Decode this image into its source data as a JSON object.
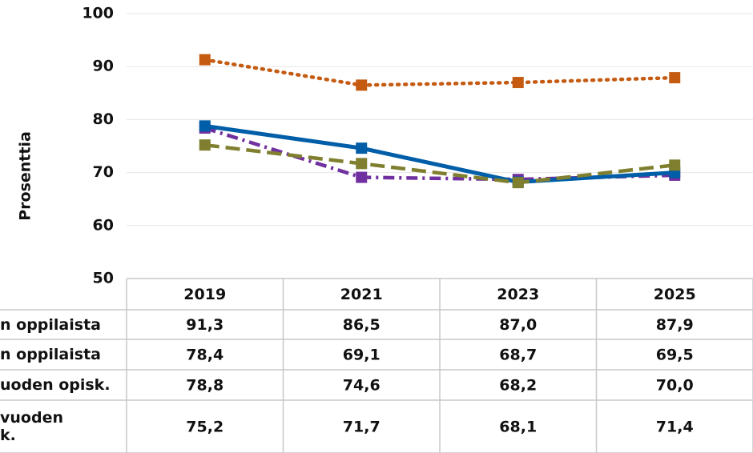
{
  "chart_data": {
    "type": "line",
    "y_label": "Prosenttia",
    "categories": [
      "2019",
      "2021",
      "2023",
      "2025"
    ],
    "ylim": [
      50,
      100
    ],
    "yticks": [
      50,
      60,
      70,
      80,
      90,
      100
    ],
    "grid": true,
    "series": [
      {
        "name": "n oppilaista",
        "color": "#c55a11",
        "dash": "dotted",
        "values": [
          91.3,
          86.5,
          87.0,
          87.9
        ],
        "value_labels": [
          "91,3",
          "86,5",
          "87,0",
          "87,9"
        ]
      },
      {
        "name": "n oppilaista",
        "color": "#7030a0",
        "dash": "dashdot",
        "values": [
          78.4,
          69.1,
          68.7,
          69.5
        ],
        "value_labels": [
          "78,4",
          "69,1",
          "68,7",
          "69,5"
        ]
      },
      {
        "name": "uoden opisk.",
        "color": "#005ea8",
        "dash": "solid",
        "values": [
          78.8,
          74.6,
          68.2,
          70.0
        ],
        "value_labels": [
          "78,8",
          "74,6",
          "68,2",
          "70,0"
        ]
      },
      {
        "name": "vuoden\nk.",
        "color": "#7f7f2f",
        "dash": "dashed",
        "values": [
          75.2,
          71.7,
          68.1,
          71.4
        ],
        "value_labels": [
          "75,2",
          "71,7",
          "68,1",
          "71,4"
        ]
      }
    ]
  }
}
